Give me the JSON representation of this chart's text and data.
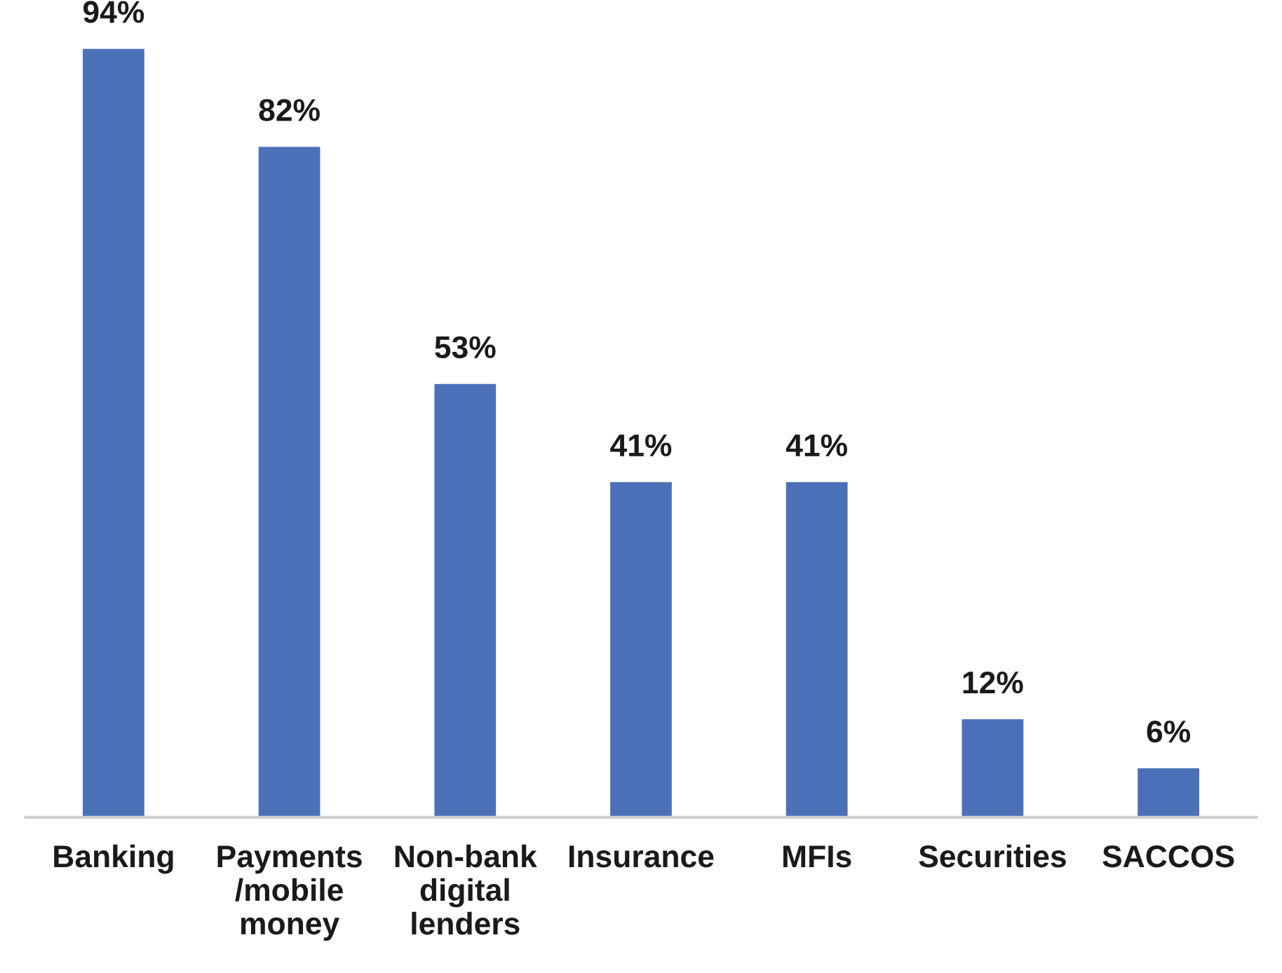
{
  "chart_data": {
    "type": "bar",
    "categories": [
      "Banking",
      "Payments\n/mobile\nmoney",
      "Non-bank\ndigital\nlenders",
      "Insurance",
      "MFIs",
      "Securities",
      "SACCOS"
    ],
    "values": [
      94,
      82,
      53,
      41,
      41,
      12,
      6
    ],
    "value_labels": [
      "94%",
      "82%",
      "53%",
      "41%",
      "41%",
      "12%",
      "6%"
    ],
    "color": "#4a71b8",
    "grid": false,
    "legend": false
  }
}
